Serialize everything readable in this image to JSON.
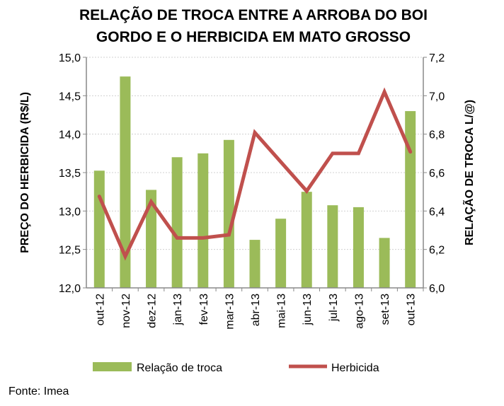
{
  "chart_data": {
    "type": "bar+line",
    "title": [
      "RELAÇÃO DE TROCA ENTRE A ARROBA DO BOI",
      "GORDO E O HERBICIDA  EM MATO GROSSO"
    ],
    "categories": [
      "out-12",
      "nov-12",
      "dez-12",
      "jan-13",
      "fev-13",
      "mar-13",
      "abr-13",
      "mai-13",
      "jun-13",
      "jul-13",
      "ago-13",
      "set-13",
      "out-13"
    ],
    "series": [
      {
        "name": "Relação de troca",
        "type": "bar",
        "axis": "right",
        "color": "#9BBB59",
        "values": [
          6.61,
          7.1,
          6.51,
          6.68,
          6.7,
          6.77,
          6.25,
          6.36,
          6.5,
          6.43,
          6.42,
          6.26,
          6.92
        ]
      },
      {
        "name": "Herbicida",
        "type": "line",
        "axis": "left",
        "color": "#C0504D",
        "values": [
          13.19,
          12.41,
          13.12,
          12.65,
          12.65,
          12.69,
          14.02,
          13.64,
          13.26,
          13.75,
          13.75,
          14.55,
          13.77
        ]
      }
    ],
    "ylabel": "PREÇO DO HERBICIDA (R$/L)",
    "ylabel_right": "RELAÇÃO DE TROCA L/@)",
    "ylim": [
      12.0,
      15.0
    ],
    "ylim_right": [
      6.0,
      7.2
    ],
    "yticks": [
      "12,0",
      "12,5",
      "13,0",
      "13,5",
      "14,0",
      "14,5",
      "15,0"
    ],
    "yticks_right": [
      "6,0",
      "6,2",
      "6,4",
      "6,6",
      "6,8",
      "7,0",
      "7,2"
    ],
    "grid": true,
    "legend_position": "bottom"
  },
  "source": "Fonte: Imea"
}
